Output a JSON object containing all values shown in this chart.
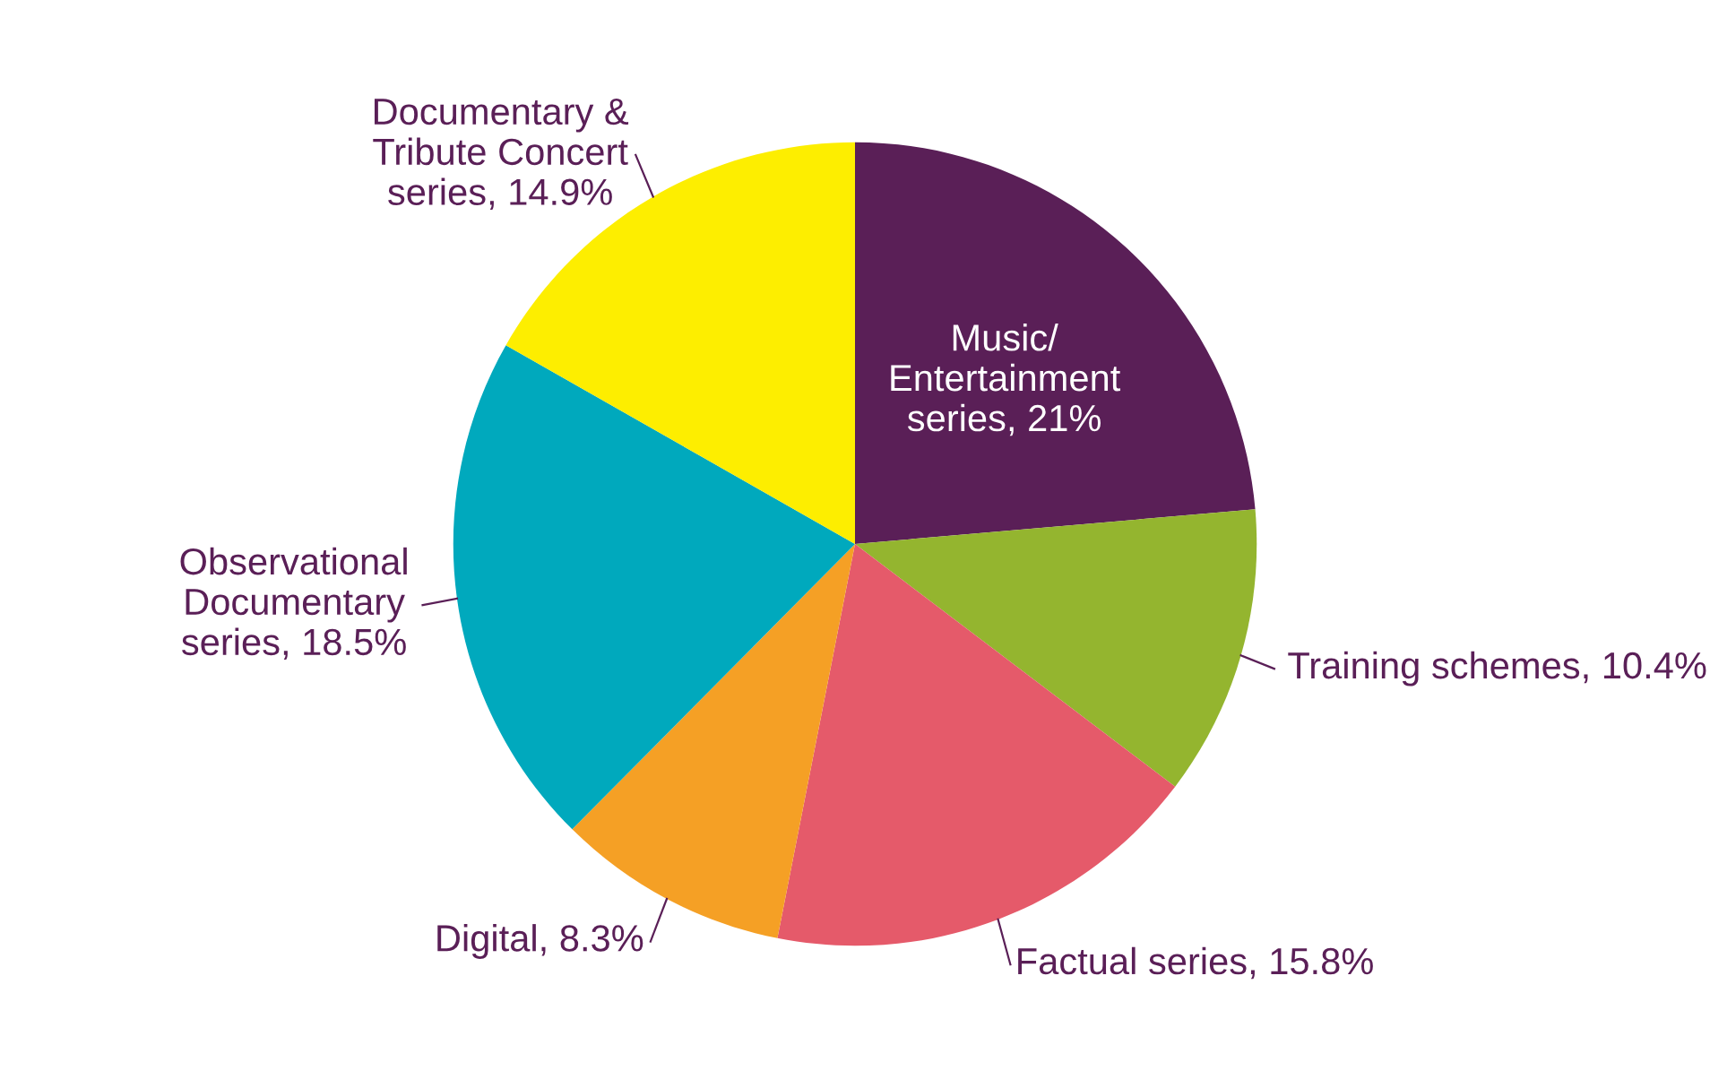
{
  "chart_data": {
    "type": "pie",
    "categories": [
      "Music/\nEntertainment\nseries",
      "Training schemes",
      "Factual series",
      "Digital",
      "Observational\nDocumentary\nseries",
      "Documentary &\nTribute Concert\nseries"
    ],
    "values": [
      21,
      10.4,
      15.8,
      8.3,
      18.5,
      14.9
    ],
    "value_labels": [
      "21%",
      "10.4%",
      "15.8%",
      "8.3%",
      "18.5%",
      "14.9%"
    ],
    "colors": [
      "#5a1f57",
      "#94b52f",
      "#e55a6a",
      "#f5a025",
      "#00a9bd",
      "#fdee00"
    ],
    "data_labels": true,
    "legend": false
  }
}
